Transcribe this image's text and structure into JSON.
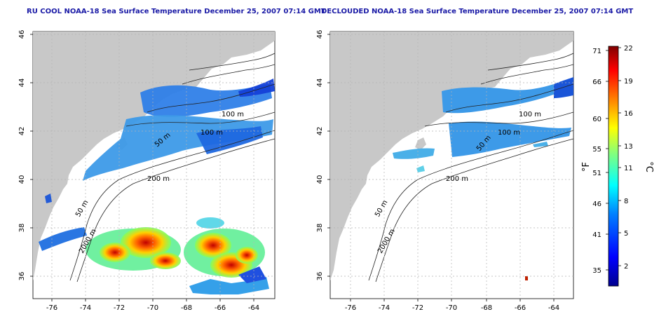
{
  "maps": [
    {
      "title": "RU COOL NOAA-18 Sea Surface Temperature December 25, 2007 07:14 GMT",
      "variant": "cloud-masked"
    },
    {
      "title": "DECLOUDED NOAA-18 Sea Surface Temperature December 25, 2007 07:14 GMT",
      "variant": "declouded"
    }
  ],
  "axes": {
    "lon_ticks": [
      "-76",
      "-74",
      "-72",
      "-70",
      "-68",
      "-66",
      "-64"
    ],
    "lat_ticks": [
      "36",
      "38",
      "40",
      "42",
      "44",
      "46"
    ]
  },
  "bathymetry_labels": [
    "50 m",
    "100 m",
    "100 m",
    "50 m",
    "200 m",
    "50 m",
    "2000 m"
  ],
  "colorbar": {
    "fahrenheit_label": "°F",
    "celsius_label": "°C",
    "fahrenheit_ticks": [
      "71",
      "66",
      "60",
      "55",
      "51",
      "46",
      "41",
      "35"
    ],
    "celsius_ticks": [
      "22",
      "19",
      "16",
      "13",
      "11",
      "8",
      "5",
      "2"
    ],
    "range_celsius": [
      0,
      22
    ],
    "colors": [
      "#00008f",
      "#0000ff",
      "#0080ff",
      "#00ffff",
      "#80ff80",
      "#ffff00",
      "#ff8000",
      "#ff0000",
      "#800000"
    ]
  },
  "colors": {
    "land": "#c8c8c8",
    "ocean": "#ffffff",
    "grid": "#b4b4b4",
    "title": "#1a1aa6"
  }
}
